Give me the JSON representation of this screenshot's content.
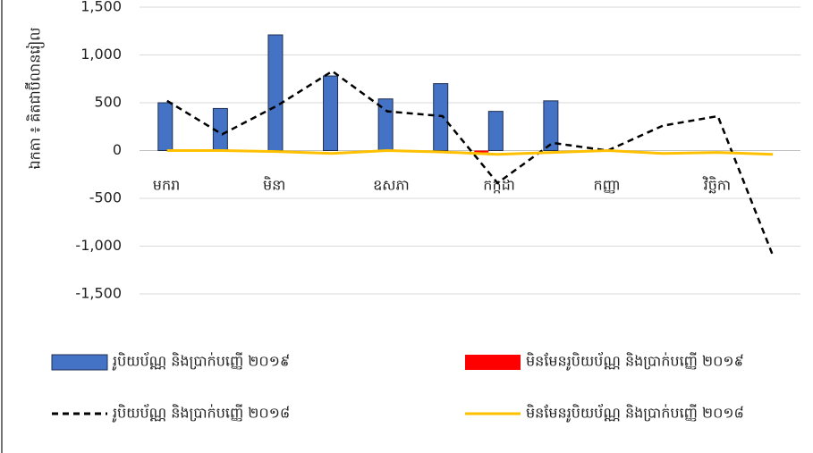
{
  "chart_data": {
    "type": "bar",
    "y_label": "ឯកតា ៖ គិតជាប៊ីលានរៀល",
    "categories": [
      "មករា",
      null,
      "មិនា",
      null,
      "ឧសភា",
      null,
      "កក្កដា",
      null,
      "កញ្ញា",
      null,
      "វិច្ឆិកា",
      null
    ],
    "series": [
      {
        "name": "រូបិយប័ណ្ណ និងប្រាក់បញ្ញើ ២០១៩",
        "type": "bar",
        "color": "#4472c4",
        "values": [
          500,
          440,
          1210,
          780,
          540,
          700,
          410,
          520,
          null,
          null,
          null,
          null
        ]
      },
      {
        "name": "មិនមែនរូបិយប័ណ្ណ និងប្រាក់បញ្ញើ ២០១៩",
        "type": "bar",
        "color": "#ff0000",
        "values": [
          null,
          null,
          null,
          null,
          null,
          null,
          -20,
          null,
          null,
          null,
          null,
          null
        ]
      },
      {
        "name": "រូបិយប័ណ្ណ និងប្រាក់បញ្ញើ ២០១៨",
        "type": "line",
        "dashed": true,
        "color": "#000000",
        "values": [
          520,
          170,
          470,
          830,
          410,
          360,
          -340,
          80,
          0,
          260,
          360,
          -1100
        ]
      },
      {
        "name": "មិនមែនរូបិយប័ណ្ណ និងប្រាក់បញ្ញើ ២០១៨",
        "type": "line",
        "dashed": false,
        "color": "#ffc000",
        "values": [
          0,
          0,
          -10,
          -30,
          0,
          -15,
          -40,
          -20,
          0,
          -30,
          -20,
          -40
        ]
      }
    ],
    "ylim": [
      -1500,
      1500
    ],
    "yticks": [
      {
        "value": -1500,
        "label": "-1,500"
      },
      {
        "value": -1000,
        "label": "-1,000"
      },
      -500,
      0,
      500,
      {
        "value": 1000,
        "label": "1,000"
      },
      {
        "value": 1500,
        "label": "1,500"
      }
    ],
    "grid": true
  }
}
